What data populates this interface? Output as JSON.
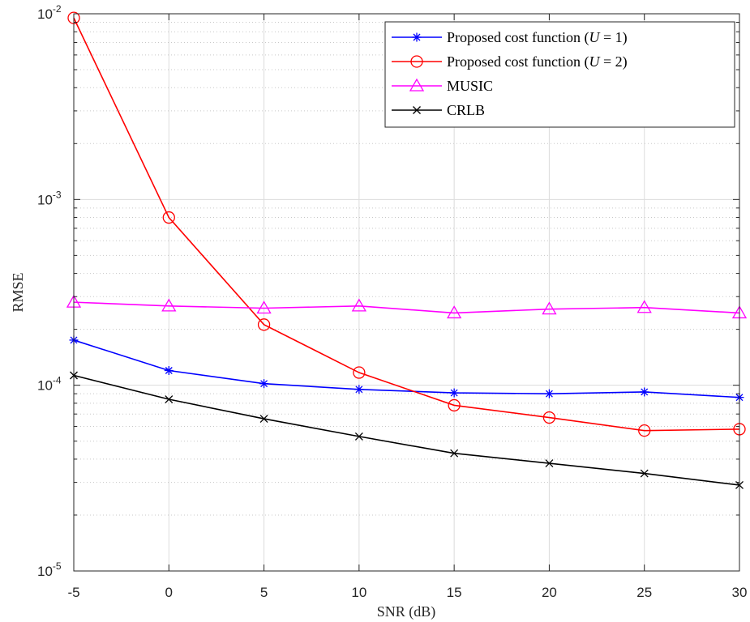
{
  "chart_data": {
    "type": "line",
    "xlabel": "SNR (dB)",
    "ylabel": "RMSE",
    "x": [
      -5,
      0,
      5,
      10,
      15,
      20,
      25,
      30
    ],
    "xlim": [
      -5,
      30
    ],
    "ylim": [
      1e-05,
      0.01
    ],
    "yscale": "log",
    "x_tick_labels": [
      "-5",
      "0",
      "5",
      "10",
      "15",
      "20",
      "25",
      "30"
    ],
    "y_ticks": [
      {
        "value": 1e-05,
        "base": "10",
        "exp": "-5"
      },
      {
        "value": 0.0001,
        "base": "10",
        "exp": "-4"
      },
      {
        "value": 0.001,
        "base": "10",
        "exp": "-3"
      },
      {
        "value": 0.01,
        "base": "10",
        "exp": "-2"
      }
    ],
    "grid": true,
    "legend_position": "top-right",
    "series": [
      {
        "name": "Proposed cost function (U = 1)",
        "name_prefix": "Proposed cost function (",
        "name_var": "U",
        "name_suffix": " = 1)",
        "color": "#0000ff",
        "marker": "asterisk",
        "values": [
          0.000175,
          0.00012,
          0.000102,
          9.5e-05,
          9.1e-05,
          9e-05,
          9.2e-05,
          8.6e-05
        ]
      },
      {
        "name": "Proposed cost function (U = 2)",
        "name_prefix": "Proposed cost function (",
        "name_var": "U",
        "name_suffix": " = 2)",
        "color": "#ff0000",
        "marker": "circle",
        "values": [
          0.0095,
          0.0008,
          0.000212,
          0.000117,
          7.8e-05,
          6.7e-05,
          5.7e-05,
          5.8e-05
        ]
      },
      {
        "name": "MUSIC",
        "color": "#ff00ff",
        "marker": "triangle",
        "values": [
          0.00028,
          0.000267,
          0.00026,
          0.000267,
          0.000245,
          0.000257,
          0.000262,
          0.000245
        ]
      },
      {
        "name": "CRLB",
        "color": "#000000",
        "marker": "x",
        "values": [
          0.000113,
          8.4e-05,
          6.6e-05,
          5.3e-05,
          4.3e-05,
          3.8e-05,
          3.35e-05,
          2.9e-05
        ]
      }
    ]
  }
}
